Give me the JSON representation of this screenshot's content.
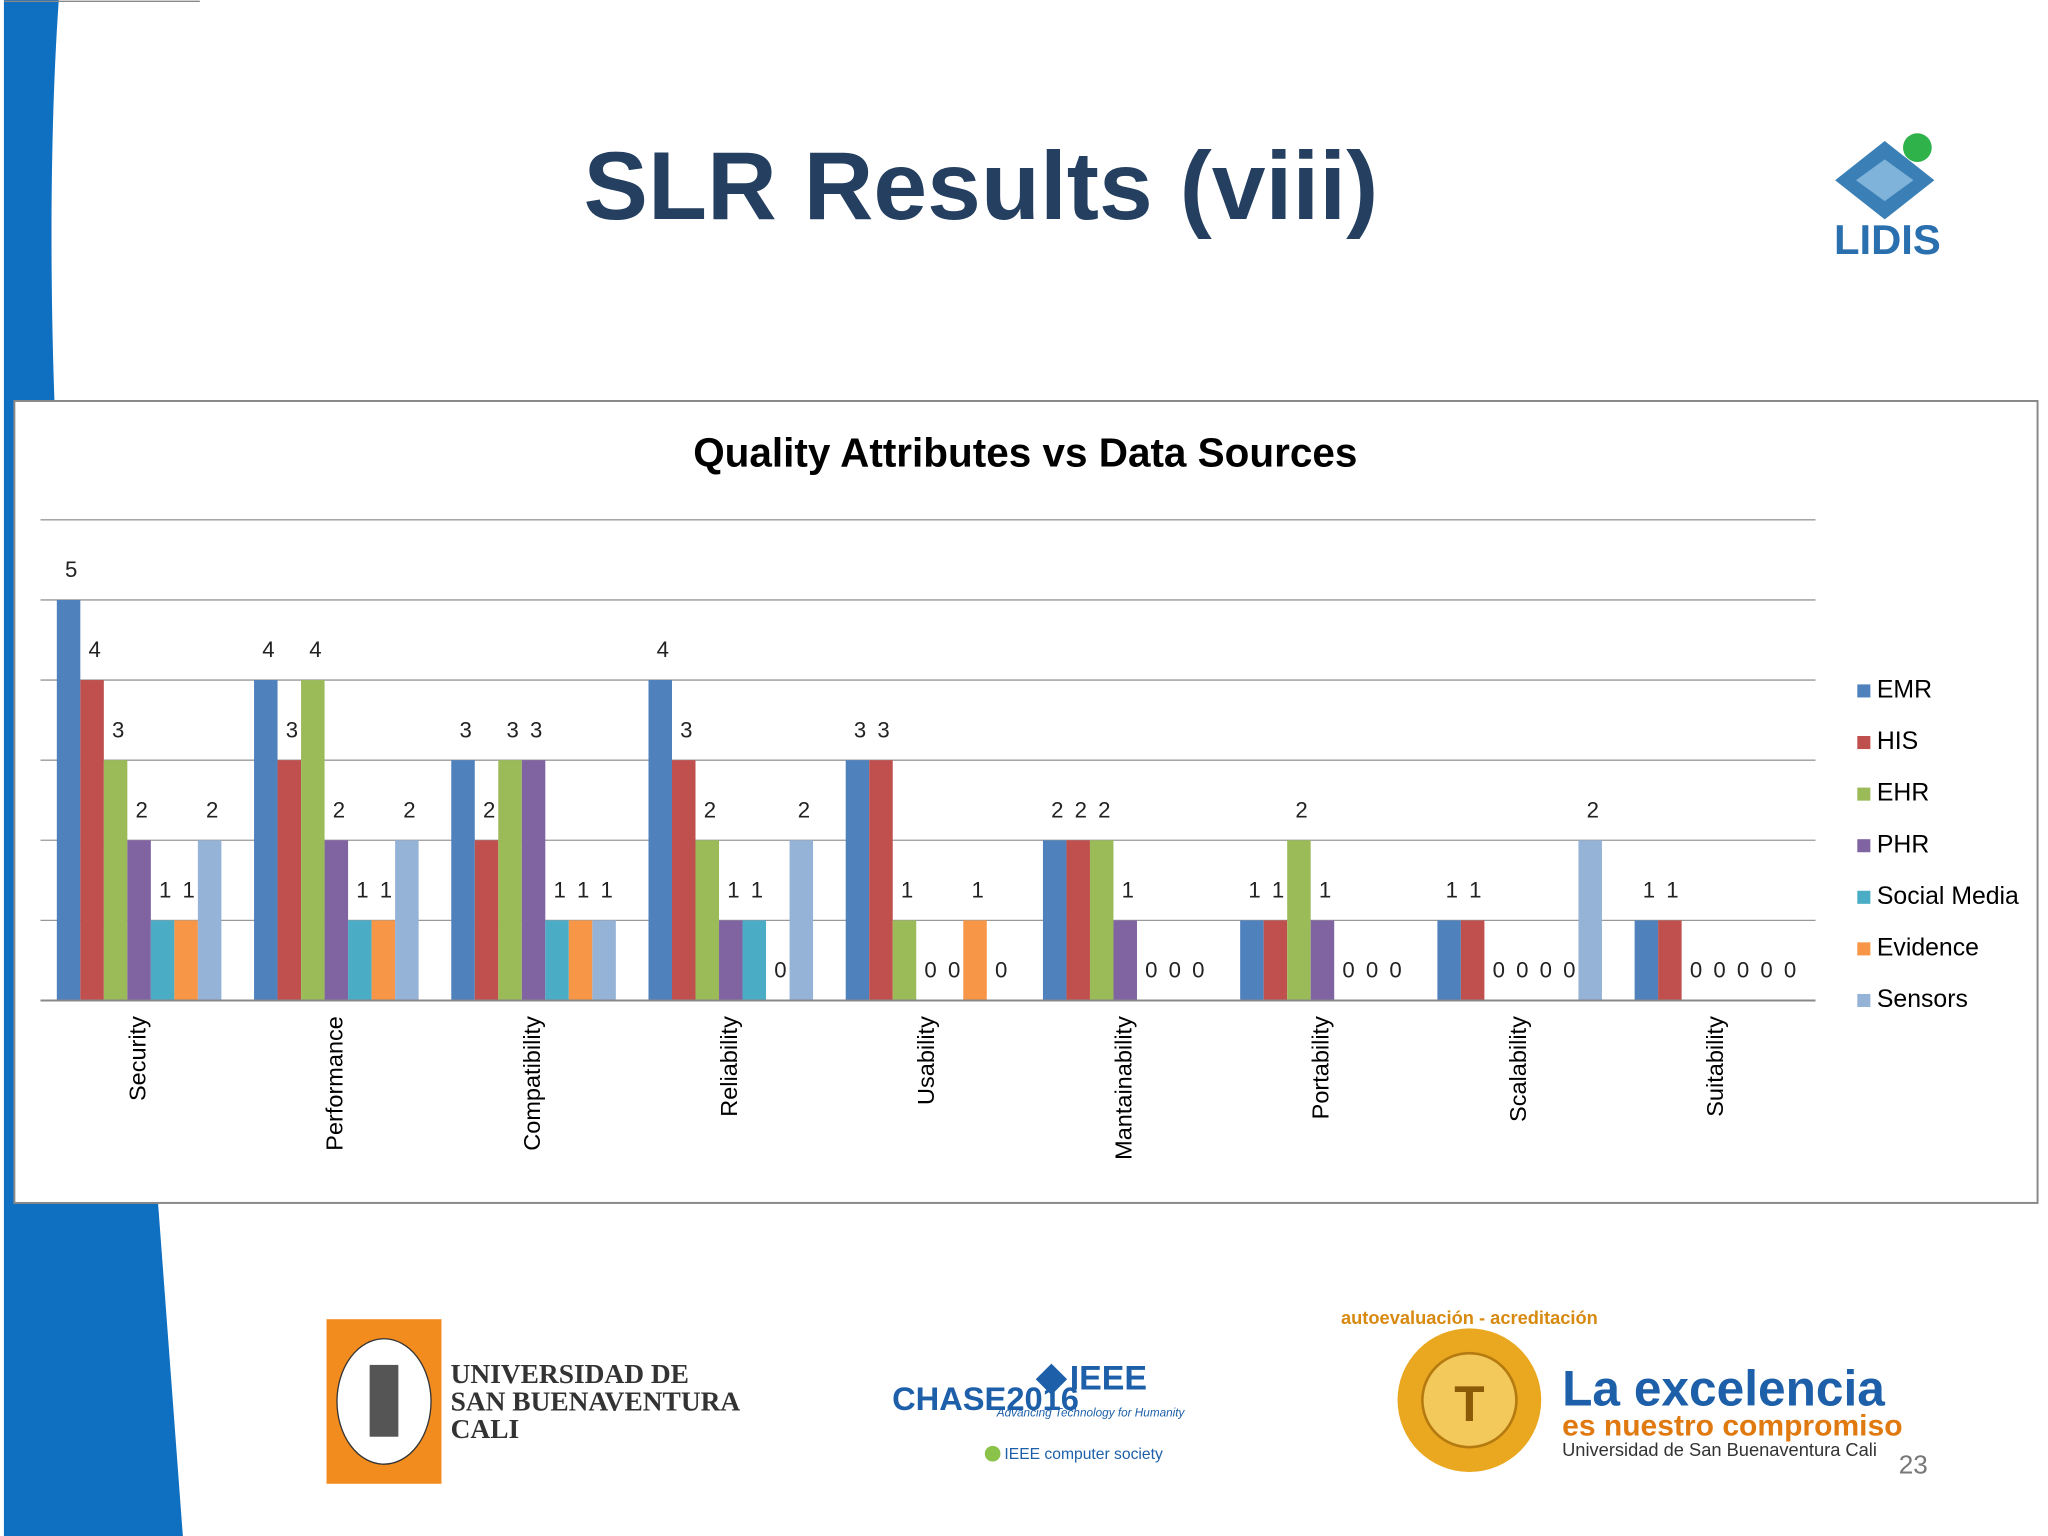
{
  "slide": {
    "title": "SLR Results (viii)",
    "page_number": "23"
  },
  "logos": {
    "lidis": "LIDIS",
    "usb": [
      "UNIVERSIDAD DE",
      "SAN BUENAVENTURA",
      "CALI"
    ],
    "chase": "CHASE2016",
    "ieee": "IEEE",
    "ieee_tagline": "Advancing Technology for Humanity",
    "computer_society": "IEEE computer society",
    "accreditation": "autoevaluación - acreditación",
    "excellence": [
      "La excelencia",
      "es nuestro compromiso",
      "Universidad de San Buenaventura Cali"
    ]
  },
  "chart_data": {
    "type": "bar",
    "title": "Quality Attributes vs Data Sources",
    "categories": [
      "Security",
      "Performance",
      "Compatibility",
      "Reliability",
      "Usability",
      "Mantainability",
      "Portability",
      "Scalability",
      "Suitability"
    ],
    "series": [
      {
        "name": "EMR",
        "color": "#4f81bd",
        "values": [
          5,
          4,
          3,
          4,
          3,
          2,
          1,
          1,
          1
        ]
      },
      {
        "name": "HIS",
        "color": "#c0504d",
        "values": [
          4,
          3,
          2,
          3,
          3,
          2,
          1,
          1,
          1
        ]
      },
      {
        "name": "EHR",
        "color": "#9bbb59",
        "values": [
          3,
          4,
          3,
          2,
          1,
          2,
          2,
          0,
          0
        ]
      },
      {
        "name": "PHR",
        "color": "#8064a2",
        "values": [
          2,
          2,
          3,
          1,
          0,
          1,
          1,
          0,
          0
        ]
      },
      {
        "name": "Social Media",
        "color": "#4bacc6",
        "values": [
          1,
          1,
          1,
          1,
          0,
          0,
          0,
          0,
          0
        ]
      },
      {
        "name": "Evidence",
        "color": "#f79646",
        "values": [
          1,
          1,
          1,
          0,
          1,
          0,
          0,
          0,
          0
        ]
      },
      {
        "name": "Sensors",
        "color": "#95b3d7",
        "values": [
          2,
          2,
          1,
          2,
          0,
          0,
          0,
          2,
          0
        ]
      }
    ],
    "ylim": [
      0,
      6
    ],
    "yticks": [
      0,
      1,
      2,
      3,
      4,
      5,
      6
    ],
    "grid": true,
    "legend": "right"
  }
}
